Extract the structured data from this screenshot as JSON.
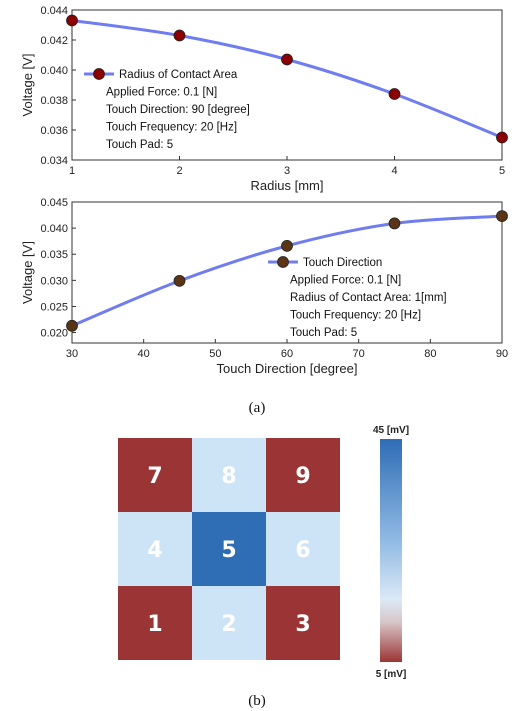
{
  "chart_data": [
    {
      "type": "line",
      "xlabel": "Radius [mm]",
      "ylabel": "Voltage [V]",
      "xlim": [
        1,
        5
      ],
      "ylim": [
        0.034,
        0.044
      ],
      "xticks": [
        "1",
        "2",
        "3",
        "4",
        "5"
      ],
      "yticks": [
        "0.034",
        "0.036",
        "0.038",
        "0.040",
        "0.042",
        "0.044"
      ],
      "x": [
        1,
        2,
        3,
        4,
        5
      ],
      "series": [
        {
          "name": "Radius of Contact Area",
          "values": [
            0.0433,
            0.0423,
            0.0407,
            0.0384,
            0.0355
          ]
        }
      ],
      "legend_lines": [
        "Radius of Contact Area",
        "Applied Force: 0.1 [N]",
        "Touch Direction: 90 [degree]",
        "Touch Frequency: 20 [Hz]",
        "Touch Pad: 5"
      ],
      "line_color": "#6f7df0",
      "marker_color": "#8b0000"
    },
    {
      "type": "line",
      "xlabel": "Touch Direction [degree]",
      "ylabel": "Voltage [V]",
      "xlim": [
        30,
        90
      ],
      "ylim": [
        0.018,
        0.045
      ],
      "xticks": [
        "30",
        "40",
        "50",
        "60",
        "70",
        "80",
        "90"
      ],
      "yticks": [
        "0.020",
        "0.025",
        "0.030",
        "0.035",
        "0.040",
        "0.045"
      ],
      "x": [
        30,
        45,
        60,
        75,
        90
      ],
      "series": [
        {
          "name": "Touch Direction",
          "values": [
            0.0213,
            0.0299,
            0.0366,
            0.0409,
            0.0423
          ]
        }
      ],
      "legend_lines": [
        "Touch Direction",
        "Applied Force: 0.1 [N]",
        "Radius of Contact Area: 1[mm]",
        "Touch Frequency: 20 [Hz]",
        "Touch Pad: 5"
      ],
      "line_color": "#6f7df0",
      "marker_color": "#5a3414"
    },
    {
      "type": "heatmap",
      "cells": [
        {
          "label": "7",
          "level": "low"
        },
        {
          "label": "8",
          "level": "light"
        },
        {
          "label": "9",
          "level": "low"
        },
        {
          "label": "4",
          "level": "light"
        },
        {
          "label": "5",
          "level": "high"
        },
        {
          "label": "6",
          "level": "light"
        },
        {
          "label": "1",
          "level": "low"
        },
        {
          "label": "2",
          "level": "light"
        },
        {
          "label": "3",
          "level": "low"
        }
      ],
      "colors": {
        "low": "#9b3535",
        "light": "#cde3f6",
        "high": "#2f6db5"
      },
      "colorbar": {
        "max_label": "45 [mV]",
        "min_label": "5 [mV]"
      }
    }
  ],
  "captions": [
    "(a)",
    "(b)"
  ]
}
